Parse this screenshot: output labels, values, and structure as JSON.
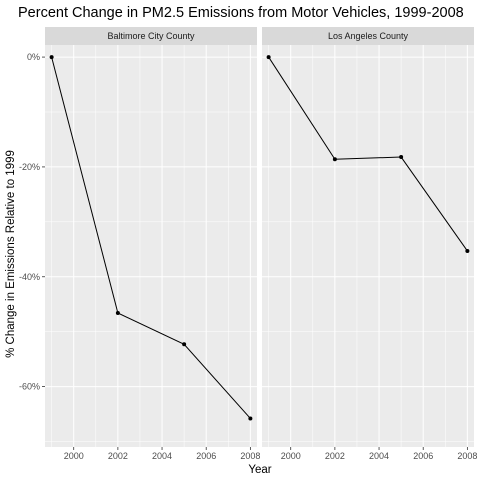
{
  "chart_data": {
    "type": "line",
    "title": "Percent Change in PM2.5 Emissions from Motor Vehicles, 1999-2008",
    "xlabel": "Year",
    "ylabel": "% Change in Emissions Relative to 1999",
    "xlim": [
      1998.7,
      2008.3
    ],
    "ylim": [
      -71,
      2.2
    ],
    "x_ticks": [
      2000,
      2002,
      2004,
      2006,
      2008
    ],
    "x_tick_labels": [
      "2000",
      "2002",
      "2004",
      "2006",
      "2008"
    ],
    "y_ticks": [
      0,
      -20,
      -40,
      -60
    ],
    "y_tick_labels": [
      "0%",
      "-20%",
      "-40%",
      "-60%"
    ],
    "grid": true,
    "legend": "none",
    "panels": [
      {
        "name": "Baltimore City County",
        "x": [
          1999,
          2002,
          2005,
          2008
        ],
        "y": [
          0,
          -46.6,
          -52.3,
          -65.8
        ]
      },
      {
        "name": "Los Angeles County",
        "x": [
          1999,
          2002,
          2005,
          2008
        ],
        "y": [
          0,
          -18.6,
          -18.2,
          -35.3
        ]
      }
    ],
    "colors": {
      "panel_background": "#ebebeb",
      "strip_background": "#d9d9d9",
      "grid": "#ffffff",
      "line": "#000000",
      "point": "#000000"
    }
  }
}
